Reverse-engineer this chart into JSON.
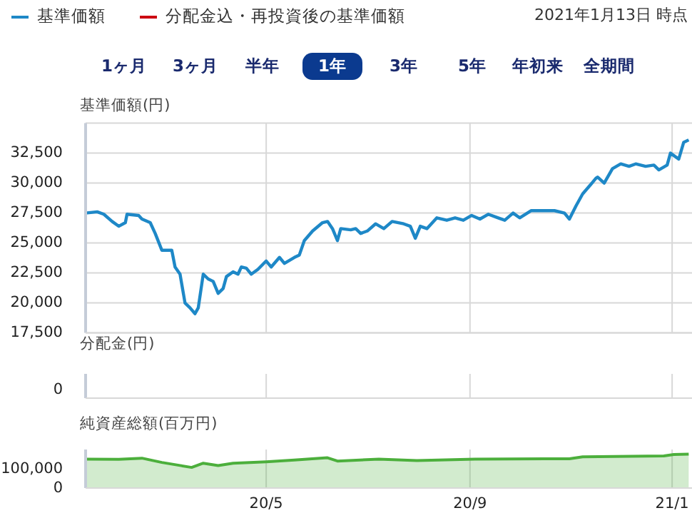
{
  "chart_data": [
    {
      "type": "line",
      "ylabel": "基準価額(円)",
      "legend": "top left",
      "grid": true,
      "tick_labels": "y",
      "annotations": [
        "2021年1月13日 時点",
        "1ヶ月",
        "3ヶ月",
        "半年",
        "1年",
        "3年",
        "5年",
        "年初来",
        "全期間"
      ],
      "xlim": [
        "2020-01-13",
        "2021-01-13"
      ],
      "xticks": [
        {
          "value": "2020-05-01",
          "label": null
        },
        {
          "value": "2020-09-01",
          "label": null
        },
        {
          "value": "2021-01-01",
          "label": null
        }
      ],
      "ylim": [
        17500,
        35000
      ],
      "yticks": [
        {
          "value": 17500,
          "label": "17,500"
        },
        {
          "value": 20000,
          "label": "20,000"
        },
        {
          "value": 22500,
          "label": "22,500"
        },
        {
          "value": 25000,
          "label": "25,000"
        },
        {
          "value": 27500,
          "label": "27,500"
        },
        {
          "value": 30000,
          "label": "30,000"
        },
        {
          "value": 32500,
          "label": "32,500"
        },
        {
          "value": 35000,
          "label": null
        }
      ],
      "series": [
        {
          "name": "基準価額",
          "color": "#1e88c7",
          "x": [
            "2020-01-13",
            "2020-01-20",
            "2020-01-24",
            "2020-01-29",
            "2020-02-02",
            "2020-02-06",
            "2020-02-07",
            "2020-02-14",
            "2020-02-16",
            "2020-02-21",
            "2020-02-24",
            "2020-02-28",
            "2020-03-05",
            "2020-03-07",
            "2020-03-10",
            "2020-03-13",
            "2020-03-16",
            "2020-03-19",
            "2020-03-21",
            "2020-03-24",
            "2020-03-27",
            "2020-03-30",
            "2020-04-02",
            "2020-04-05",
            "2020-04-07",
            "2020-04-11",
            "2020-04-14",
            "2020-04-16",
            "2020-04-19",
            "2020-04-22",
            "2020-04-26",
            "2020-05-01",
            "2020-05-04",
            "2020-05-09",
            "2020-05-12",
            "2020-05-18",
            "2020-05-21",
            "2020-05-24",
            "2020-05-29",
            "2020-06-04",
            "2020-06-07",
            "2020-06-10",
            "2020-06-13",
            "2020-06-15",
            "2020-06-21",
            "2020-06-24",
            "2020-06-27",
            "2020-07-01",
            "2020-07-06",
            "2020-07-11",
            "2020-07-16",
            "2020-07-23",
            "2020-07-27",
            "2020-07-30",
            "2020-08-02",
            "2020-08-06",
            "2020-08-12",
            "2020-08-18",
            "2020-08-23",
            "2020-08-28",
            "2020-09-02",
            "2020-09-07",
            "2020-09-12",
            "2020-09-18",
            "2020-09-22",
            "2020-09-27",
            "2020-10-01",
            "2020-10-08",
            "2020-10-17",
            "2020-10-22",
            "2020-10-28",
            "2020-10-31",
            "2020-11-04",
            "2020-11-08",
            "2020-11-13",
            "2020-11-16",
            "2020-11-17",
            "2020-11-21",
            "2020-11-26",
            "2020-12-01",
            "2020-12-06",
            "2020-12-10",
            "2020-12-16",
            "2020-12-21",
            "2020-12-24",
            "2020-12-29",
            "2020-12-31",
            "2021-01-05",
            "2021-01-08",
            "2021-01-11"
          ],
          "values": [
            27500,
            27600,
            27400,
            26800,
            26400,
            26700,
            27400,
            27300,
            27000,
            26700,
            25800,
            24400,
            24400,
            23000,
            22400,
            20000,
            19600,
            19100,
            19600,
            22400,
            22000,
            21800,
            20800,
            21200,
            22200,
            22600,
            22400,
            23000,
            22900,
            22400,
            22800,
            23500,
            23000,
            23800,
            23300,
            23800,
            24000,
            25200,
            26000,
            26700,
            26800,
            26200,
            25200,
            26200,
            26100,
            26200,
            25800,
            26000,
            26600,
            26200,
            26800,
            26600,
            26400,
            25400,
            26400,
            26200,
            27100,
            26900,
            27100,
            26900,
            27300,
            27000,
            27400,
            27100,
            26900,
            27500,
            27100,
            27700,
            27700,
            27700,
            27500,
            27000,
            28100,
            29100,
            29900,
            30400,
            30500,
            30000,
            31200,
            31600,
            31400,
            31600,
            31400,
            31500,
            31100,
            31500,
            32500,
            32000,
            33400,
            33600
          ]
        },
        {
          "name": "分配金込・再投資後の基準価額",
          "color": "#cc0011"
        }
      ]
    },
    {
      "type": "other",
      "ylabel": "分配金(円)",
      "annotations": [
        "0"
      ]
    },
    {
      "type": "area",
      "ylabel": "純資産総額(百万円)",
      "grid": "x",
      "color": "#4caf3c",
      "xlim": [
        "2020-01-13",
        "2021-01-13"
      ],
      "xticks": [
        {
          "value": "2020-05-01",
          "label": "20/5"
        },
        {
          "value": "2020-09-01",
          "label": "20/9"
        },
        {
          "value": "2021-01-01",
          "label": "21/1"
        }
      ],
      "ylim": [
        0,
        200000
      ],
      "yticks": [
        0,
        {
          "value": 100000,
          "label": "100,000"
        }
      ],
      "x": [
        "2020-01-13",
        "2020-02-02",
        "2020-02-16",
        "2020-02-28",
        "2020-03-10",
        "2020-03-17",
        "2020-03-24",
        "2020-04-02",
        "2020-04-11",
        "2020-05-01",
        "2020-05-18",
        "2020-06-07",
        "2020-06-13",
        "2020-07-08",
        "2020-07-31",
        "2020-09-04",
        "2020-10-31",
        "2020-11-08",
        "2020-12-27",
        "2021-01-02",
        "2021-01-11"
      ],
      "values": [
        150000,
        149000,
        155000,
        133000,
        117000,
        107000,
        129000,
        117000,
        129000,
        136000,
        145000,
        157000,
        140000,
        150000,
        143000,
        150000,
        152000,
        162000,
        167000,
        174000,
        176000
      ]
    }
  ]
}
